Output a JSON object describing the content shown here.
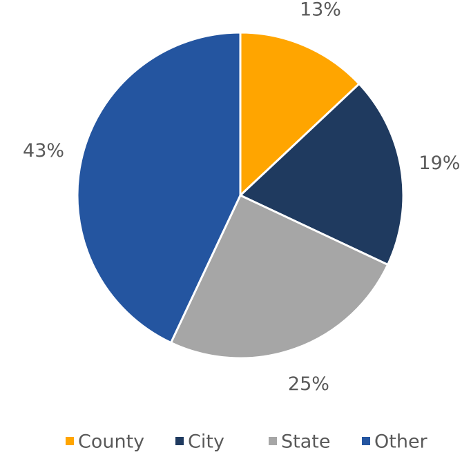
{
  "chart_data": {
    "type": "pie",
    "categories": [
      "County",
      "City",
      "State",
      "Other"
    ],
    "values": [
      13,
      19,
      25,
      43
    ],
    "value_labels": [
      "13%",
      "19%",
      "25%",
      "43%"
    ],
    "colors": [
      "#ffa500",
      "#1f3a5f",
      "#a6a6a6",
      "#2455a0"
    ],
    "legend": "bottom"
  }
}
